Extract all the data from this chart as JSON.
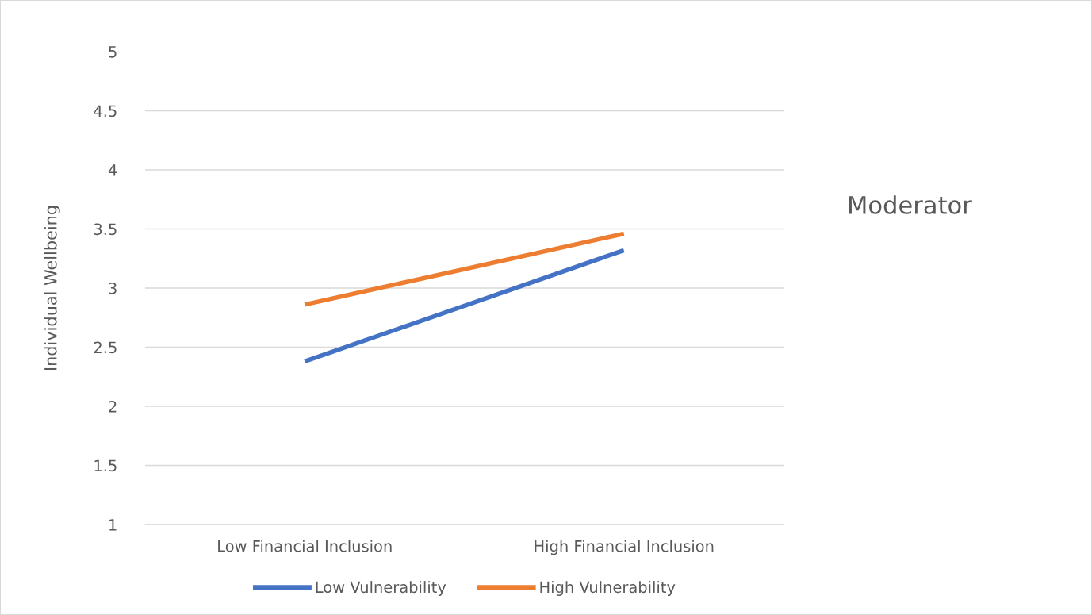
{
  "chart_data": {
    "type": "line",
    "ylabel": "Individual Wellbeing",
    "categories": [
      "Low Financial Inclusion",
      "High Financial Inclusion"
    ],
    "series": [
      {
        "name": "Low Vulnerability",
        "color": "#4472c4",
        "values": [
          2.38,
          3.32
        ]
      },
      {
        "name": "High Vulnerability",
        "color": "#ed7d31",
        "values": [
          2.86,
          3.46
        ]
      }
    ],
    "ylim": [
      1,
      5
    ],
    "yticks": [
      1,
      1.5,
      2,
      2.5,
      3,
      3.5,
      4,
      4.5,
      5
    ],
    "grid": "y",
    "legend": "bottom",
    "marker": "none",
    "line_style": "solid",
    "annotations": [
      "Moderator"
    ]
  }
}
